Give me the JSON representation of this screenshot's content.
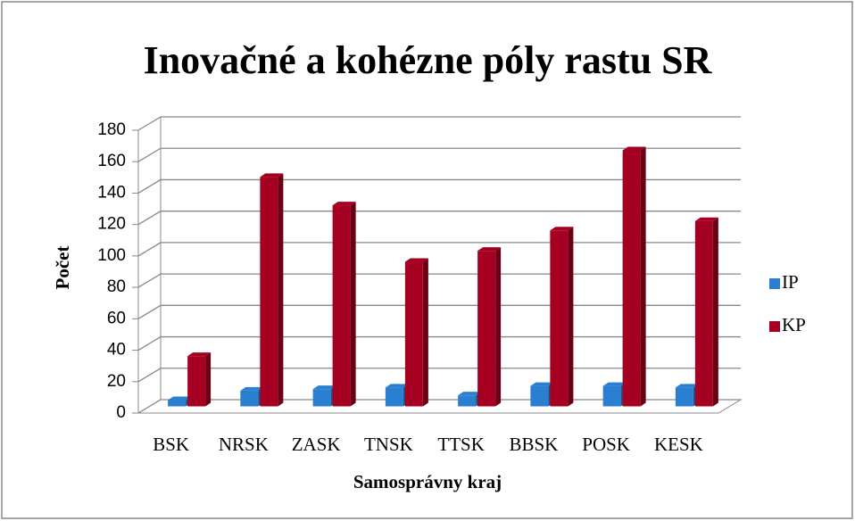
{
  "chart_data": {
    "type": "bar3d",
    "title": "Inovačné a kohézne póly rastu SR",
    "x_label": "Samosprávny kraj",
    "y_label": "Počet",
    "categories": [
      "BSK",
      "NRSK",
      "ZASK",
      "TNSK",
      "TTSK",
      "BBSK",
      "POSK",
      "KESK"
    ],
    "series": [
      {
        "name": "IP",
        "color": "#2b7fd1",
        "values": [
          4,
          10,
          11,
          12,
          7,
          13,
          13,
          12
        ]
      },
      {
        "name": "KP",
        "color": "#a50021",
        "values": [
          32,
          146,
          128,
          92,
          99,
          112,
          163,
          118
        ]
      }
    ],
    "ylim": [
      0,
      180
    ],
    "yticks": [
      0,
      20,
      40,
      60,
      80,
      100,
      120,
      140,
      160,
      180
    ],
    "grid": true,
    "legend": "right"
  }
}
